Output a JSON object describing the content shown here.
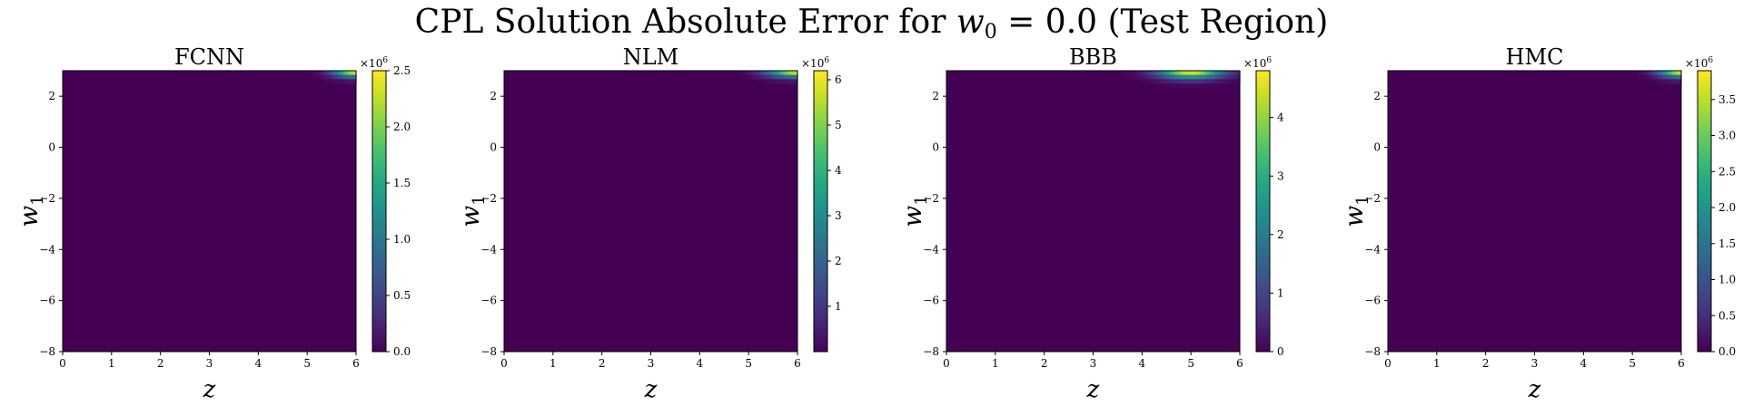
{
  "figure": {
    "title_text": "CPL Solution Absolute Error for",
    "title_math_var": "w",
    "title_math_sub": "0",
    "title_math_value": " = 0.0",
    "title_suffix": " (Test Region)"
  },
  "chart_data": [
    {
      "type": "heatmap",
      "title": "FCNN",
      "xlabel": "z",
      "ylabel": "w",
      "ylabel_sub": "1",
      "xlim": [
        0,
        6
      ],
      "ylim": [
        -8,
        3
      ],
      "xticks": [
        "0",
        "1",
        "2",
        "3",
        "4",
        "5",
        "6"
      ],
      "yticks": [
        "2",
        "0",
        "−2",
        "−4",
        "−6",
        "−8"
      ],
      "ytick_values": [
        2,
        0,
        -2,
        -4,
        -6,
        -8
      ],
      "colormap": "viridis",
      "colorbar": {
        "label_multiplier": "×10",
        "label_exponent": "6",
        "range": [
          0.0,
          2.5
        ],
        "ticks": [
          "0.0",
          "0.5",
          "1.0",
          "1.5",
          "2.0",
          "2.5"
        ],
        "tick_values": [
          0.0,
          0.5,
          1.0,
          1.5,
          2.0,
          2.5
        ]
      },
      "hotspot": {
        "x": 6.0,
        "y": 3.0,
        "peak": 2.5,
        "spread_x": 0.45,
        "spread_y": 0.25
      }
    },
    {
      "type": "heatmap",
      "title": "NLM",
      "xlabel": "z",
      "ylabel": "w",
      "ylabel_sub": "1",
      "xlim": [
        0,
        6
      ],
      "ylim": [
        -8,
        3
      ],
      "xticks": [
        "0",
        "1",
        "2",
        "3",
        "4",
        "5",
        "6"
      ],
      "yticks": [
        "2",
        "0",
        "−2",
        "−4",
        "−6",
        "−8"
      ],
      "ytick_values": [
        2,
        0,
        -2,
        -4,
        -6,
        -8
      ],
      "colormap": "viridis",
      "colorbar": {
        "label_multiplier": "×10",
        "label_exponent": "6",
        "range": [
          0.0,
          6.2
        ],
        "ticks": [
          "1",
          "2",
          "3",
          "4",
          "5",
          "6"
        ],
        "tick_values": [
          1,
          2,
          3,
          4,
          5,
          6
        ]
      },
      "hotspot": {
        "x": 6.0,
        "y": 3.0,
        "peak": 6.2,
        "spread_x": 0.6,
        "spread_y": 0.25
      }
    },
    {
      "type": "heatmap",
      "title": "BBB",
      "xlabel": "z",
      "ylabel": "w",
      "ylabel_sub": "1",
      "xlim": [
        0,
        6
      ],
      "ylim": [
        -8,
        3
      ],
      "xticks": [
        "0",
        "1",
        "2",
        "3",
        "4",
        "5",
        "6"
      ],
      "yticks": [
        "2",
        "0",
        "−2",
        "−4",
        "−6",
        "−8"
      ],
      "ytick_values": [
        2,
        0,
        -2,
        -4,
        -6,
        -8
      ],
      "colormap": "viridis",
      "colorbar": {
        "label_multiplier": "×10",
        "label_exponent": "6",
        "range": [
          0.0,
          4.8
        ],
        "ticks": [
          "0",
          "1",
          "2",
          "3",
          "4"
        ],
        "tick_values": [
          0,
          1,
          2,
          3,
          4
        ]
      },
      "hotspot": {
        "x": 5.0,
        "y": 3.0,
        "peak": 4.8,
        "spread_x": 0.65,
        "spread_y": 0.3
      }
    },
    {
      "type": "heatmap",
      "title": "HMC",
      "xlabel": "z",
      "ylabel": "w",
      "ylabel_sub": "1",
      "xlim": [
        0,
        6
      ],
      "ylim": [
        -8,
        3
      ],
      "xticks": [
        "0",
        "1",
        "2",
        "3",
        "4",
        "5",
        "6"
      ],
      "yticks": [
        "2",
        "0",
        "−2",
        "−4",
        "−6",
        "−8"
      ],
      "ytick_values": [
        2,
        0,
        -2,
        -4,
        -6,
        -8
      ],
      "colormap": "viridis",
      "colorbar": {
        "label_multiplier": "×10",
        "label_exponent": "6",
        "range": [
          0.0,
          3.9
        ],
        "ticks": [
          "0.0",
          "0.5",
          "1.0",
          "1.5",
          "2.0",
          "2.5",
          "3.0",
          "3.5"
        ],
        "tick_values": [
          0.0,
          0.5,
          1.0,
          1.5,
          2.0,
          2.5,
          3.0,
          3.5
        ]
      },
      "hotspot": {
        "x": 6.0,
        "y": 3.0,
        "peak": 3.9,
        "spread_x": 0.45,
        "spread_y": 0.25
      }
    }
  ]
}
